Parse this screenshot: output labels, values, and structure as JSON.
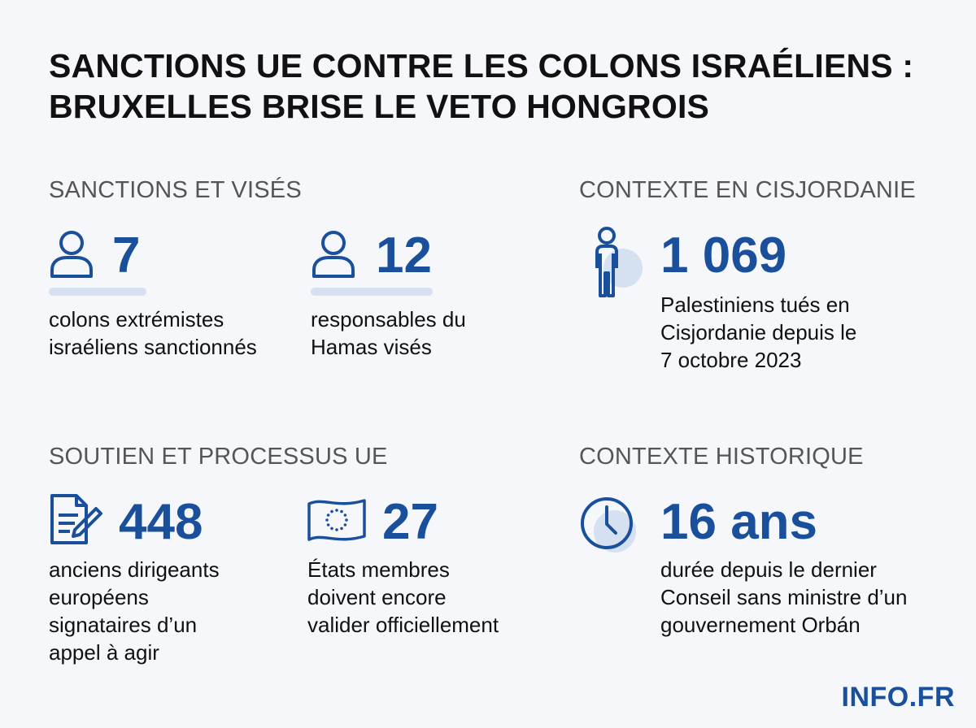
{
  "title": {
    "line1": "SANCTIONS UE CONTRE LES COLONS ISRAÉLIENS :",
    "line2": "BRUXELLES BRISE LE VETO HONGROIS"
  },
  "sections": {
    "sanctions": {
      "heading": "SANCTIONS ET VISÉS",
      "stats": [
        {
          "icon": "person-icon",
          "value": "7",
          "desc": [
            "colons extrémistes",
            "israéliens sanctionnés"
          ]
        },
        {
          "icon": "person-icon",
          "value": "12",
          "desc": [
            "responsables du",
            "Hamas visés"
          ]
        }
      ]
    },
    "cisjordanie": {
      "heading": "CONTEXTE EN CISJORDANIE",
      "stats": [
        {
          "icon": "standing-person-icon",
          "value": "1 069",
          "desc": [
            "Palestiniens tués en",
            "Cisjordanie depuis le",
            "7 octobre 2023"
          ]
        }
      ]
    },
    "soutien": {
      "heading": "SOUTIEN ET PROCESSUS UE",
      "stats": [
        {
          "icon": "document-pen-icon",
          "value": "448",
          "desc": [
            "anciens dirigeants",
            "européens",
            "signataires d’un",
            "appel à agir"
          ]
        },
        {
          "icon": "eu-flag-icon",
          "value": "27",
          "desc": [
            "États membres",
            "doivent encore",
            "valider officiellement"
          ]
        }
      ]
    },
    "historique": {
      "heading": "CONTEXTE HISTORIQUE",
      "stats": [
        {
          "icon": "clock-icon",
          "value": "16 ans",
          "desc": [
            "durée depuis le dernier",
            "Conseil sans ministre d’un",
            "gouvernement Orbán"
          ]
        }
      ]
    }
  },
  "logo": "INFO.FR",
  "colors": {
    "accent": "#1a4f9c",
    "accent_light": "#d5e0f1",
    "background": "#f5f7fa",
    "heading": "#555555"
  }
}
